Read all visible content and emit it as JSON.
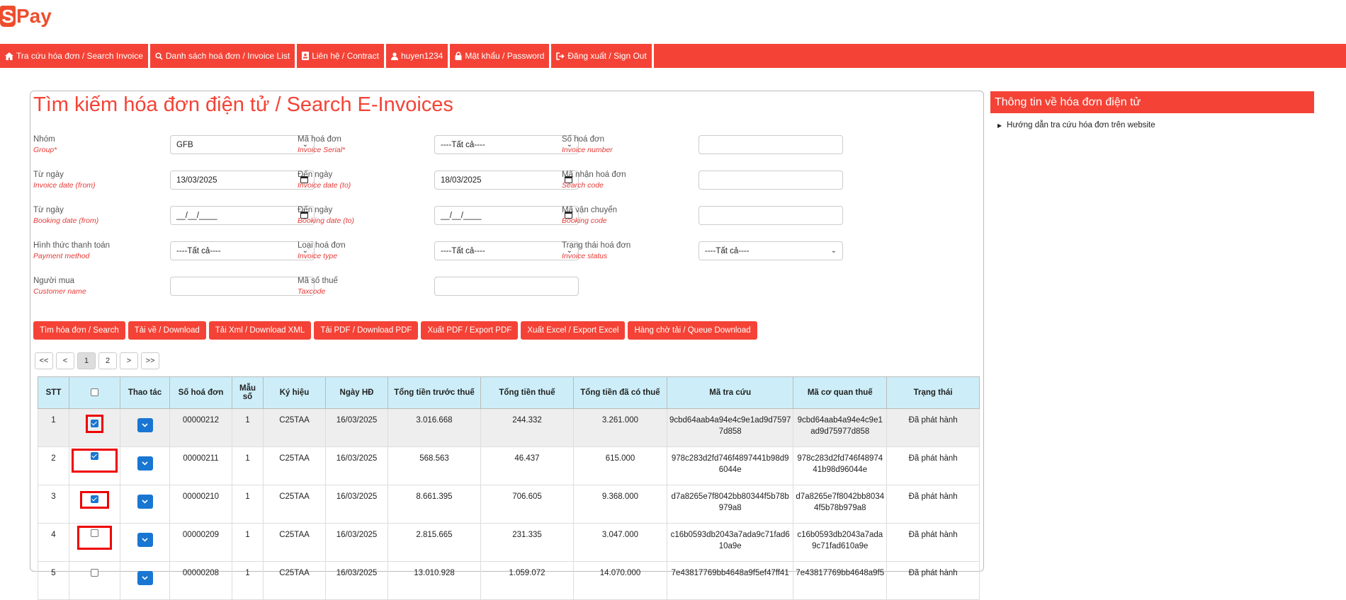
{
  "brand": {
    "logo_letter": "S",
    "logo_text": "Pay"
  },
  "nav": [
    {
      "label": "Tra cứu hóa đơn / Search Invoice",
      "icon": "home-icon"
    },
    {
      "label": "Danh sách hoá đơn / Invoice List",
      "icon": "search-icon"
    },
    {
      "label": "Liên hệ / Contract",
      "icon": "contact-card-icon"
    },
    {
      "label": "huyen1234",
      "icon": "user-icon"
    },
    {
      "label": "Mật khẩu / Password",
      "icon": "lock-icon"
    },
    {
      "label": "Đăng xuất / Sign Out",
      "icon": "sign-out-icon"
    }
  ],
  "main": {
    "title": "Tìm kiếm hóa đơn điện tử / Search E-Invoices"
  },
  "form": {
    "group": {
      "label": "Nhóm",
      "en": "Group*",
      "value": "GFB"
    },
    "serial": {
      "label": "Mã hoá đơn",
      "en": "Invoice Serial*",
      "value": "----Tất cả----"
    },
    "number": {
      "label": "Số hoá đơn",
      "en": "Invoice number",
      "value": ""
    },
    "inv_from": {
      "label": "Từ ngày",
      "en": "Invoice date (from)",
      "value": "13/03/2025"
    },
    "inv_to": {
      "label": "Đến ngày",
      "en": "Invoice date (to)",
      "value": "18/03/2025"
    },
    "search_code": {
      "label": "Mã nhận hoá đơn",
      "en": "Search code",
      "value": ""
    },
    "book_from": {
      "label": "Từ ngày",
      "en": "Booking date (from)",
      "value": "__/__/____"
    },
    "book_to": {
      "label": "Đến ngày",
      "en": "Booking date (to)",
      "value": "__/__/____"
    },
    "booking_code": {
      "label": "Mã vận chuyển",
      "en": "Booking code",
      "value": ""
    },
    "payment": {
      "label": "Hình thức thanh toán",
      "en": "Payment method",
      "value": "----Tất cả----"
    },
    "inv_type": {
      "label": "Loại hoá đơn",
      "en": "Invoice type",
      "value": "----Tất cả----"
    },
    "status": {
      "label": "Trạng thái hoá đơn",
      "en": "Invoice status",
      "value": "----Tất cả----"
    },
    "customer": {
      "label": "Người mua",
      "en": "Customer name",
      "value": ""
    },
    "taxcode": {
      "label": "Mã số thuế",
      "en": "Taxcode",
      "value": ""
    }
  },
  "buttons": [
    "Tìm hóa đơn / Search",
    "Tải về / Download",
    "Tải Xml / Download XML",
    "Tải PDF / Download PDF",
    "Xuất PDF / Export PDF",
    "Xuất Excel / Export Excel",
    "Hàng chờ tải / Queue Download"
  ],
  "pager": [
    "<<",
    "<",
    "1",
    "2",
    ">",
    ">>"
  ],
  "table": {
    "headers": [
      "STT",
      "",
      "Thao tác",
      "Số hoá đơn",
      "Mẫu số",
      "Ký hiệu",
      "Ngày HĐ",
      "Tổng tiền trước thuế",
      "Tổng tiền thuế",
      "Tổng tiền đã có thuế",
      "Mã tra cứu",
      "Mã cơ quan thuế",
      "Trạng thái"
    ],
    "rows": [
      {
        "stt": "1",
        "checked": true,
        "so": "00000212",
        "mau": "1",
        "kyhieu": "C25TAA",
        "ngay": "16/03/2025",
        "truoc": "3.016.668",
        "thue": "244.332",
        "tong": "3.261.000",
        "matracuu": "9cbd64aab4a94e4c9e1ad9d7597 7d858",
        "macqt": "9cbd64aab4a94e4c9e1 ad9d75977d858",
        "trangthai": "Đã phát hành"
      },
      {
        "stt": "2",
        "checked": true,
        "so": "00000211",
        "mau": "1",
        "kyhieu": "C25TAA",
        "ngay": "16/03/2025",
        "truoc": "568.563",
        "thue": "46.437",
        "tong": "615.000",
        "matracuu": "978c283d2fd746f4897441b98d9 6044e",
        "macqt": "978c283d2fd746f48974 41b98d96044e",
        "trangthai": "Đã phát hành"
      },
      {
        "stt": "3",
        "checked": true,
        "so": "00000210",
        "mau": "1",
        "kyhieu": "C25TAA",
        "ngay": "16/03/2025",
        "truoc": "8.661.395",
        "thue": "706.605",
        "tong": "9.368.000",
        "matracuu": "d7a8265e7f8042bb80344f5b78b 979a8",
        "macqt": "d7a8265e7f8042bb8034 4f5b78b979a8",
        "trangthai": "Đã phát hành"
      },
      {
        "stt": "4",
        "checked": false,
        "so": "00000209",
        "mau": "1",
        "kyhieu": "C25TAA",
        "ngay": "16/03/2025",
        "truoc": "2.815.665",
        "thue": "231.335",
        "tong": "3.047.000",
        "matracuu": "c16b0593db2043a7ada9c71fad6 10a9e",
        "macqt": "c16b0593db2043a7ada 9c71fad610a9e",
        "trangthai": "Đã phát hành"
      },
      {
        "stt": "5",
        "checked": false,
        "so": "00000208",
        "mau": "1",
        "kyhieu": "C25TAA",
        "ngay": "16/03/2025",
        "truoc": "13.010.928",
        "thue": "1.059.072",
        "tong": "14.070.000",
        "matracuu": "7e43817769bb4648a9f5ef47ff41",
        "macqt": "7e43817769bb4648a9f5",
        "trangthai": "Đã phát hành"
      }
    ]
  },
  "side": {
    "title": "Thông tin về hóa đơn điện tử",
    "link": "Hướng dẫn tra cứu hóa đơn trên website"
  },
  "colors": {
    "accent": "#f44336",
    "header_bg": "#cdeef8",
    "action_blue": "#1976d2"
  }
}
